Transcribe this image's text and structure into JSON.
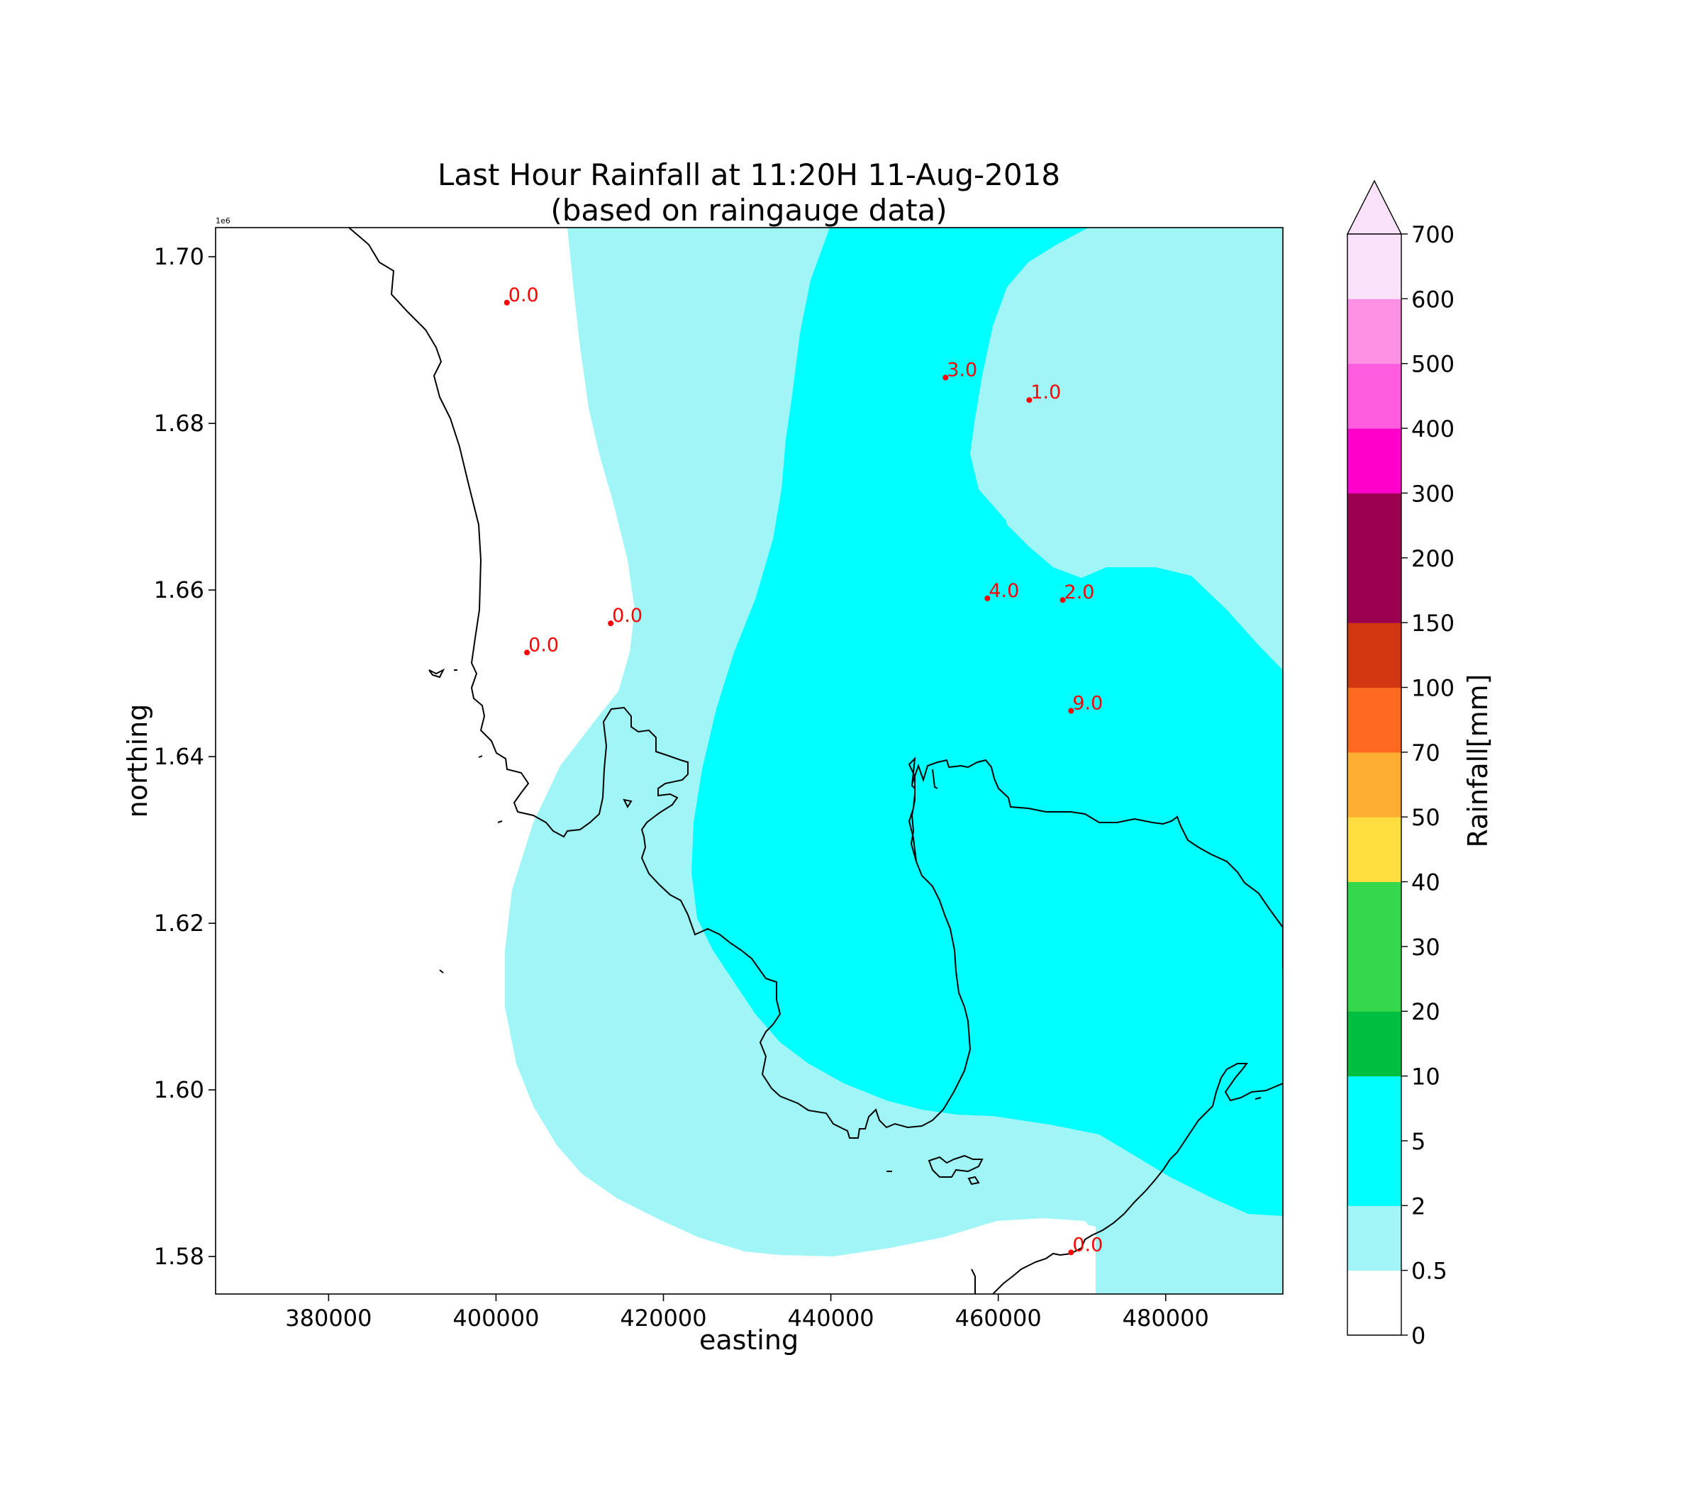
{
  "chart_data": {
    "type": "map",
    "title_line1": "Last Hour Rainfall at 11:20H 11-Aug-2018",
    "title_line2": "(based on raingauge data)",
    "xlabel": "easting",
    "ylabel": "northing",
    "y_offset_label": "1e6",
    "xlim": [
      366500,
      494000
    ],
    "ylim": [
      1.5755,
      1.7035
    ],
    "x_ticks": [
      380000,
      400000,
      420000,
      440000,
      460000,
      480000
    ],
    "x_tick_labels": [
      "380000",
      "400000",
      "420000",
      "440000",
      "460000",
      "480000"
    ],
    "y_ticks": [
      1.58,
      1.6,
      1.62,
      1.64,
      1.66,
      1.68,
      1.7
    ],
    "y_tick_labels": [
      "1.58",
      "1.60",
      "1.62",
      "1.64",
      "1.66",
      "1.68",
      "1.70"
    ],
    "gauges": [
      {
        "easting": 401300,
        "northing": 1.6945,
        "label": "0.0"
      },
      {
        "easting": 453700,
        "northing": 1.6855,
        "label": "3.0"
      },
      {
        "easting": 463700,
        "northing": 1.6828,
        "label": "1.0"
      },
      {
        "easting": 413700,
        "northing": 1.656,
        "label": "0.0"
      },
      {
        "easting": 403700,
        "northing": 1.6525,
        "label": "0.0"
      },
      {
        "easting": 458700,
        "northing": 1.659,
        "label": "4.0"
      },
      {
        "easting": 467700,
        "northing": 1.6588,
        "label": "2.0"
      },
      {
        "easting": 468700,
        "northing": 1.6455,
        "label": "9.0"
      },
      {
        "easting": 468700,
        "northing": 1.5805,
        "label": "0.0"
      }
    ],
    "colorbar": {
      "label": "Rainfall[mm]",
      "extend": "max",
      "extend_color": "#fbe2fb",
      "boundary_labels": [
        "0",
        "0.5",
        "2",
        "5",
        "10",
        "20",
        "30",
        "40",
        "50",
        "70",
        "100",
        "150",
        "200",
        "300",
        "400",
        "500",
        "600",
        "700"
      ],
      "colors": [
        "#ffffff",
        "#a0f6f6",
        "#00ffff",
        "#00ffff",
        "#00bf40",
        "#35d84a",
        "#35d84a",
        "#fede3e",
        "#feae32",
        "#ff6820",
        "#d23610",
        "#9b0050",
        "#9b0050",
        "#ff00cb",
        "#fe5cdf",
        "#fe90e4",
        "#fbe2fb"
      ]
    },
    "label_color": "#ff0000",
    "zone_colors": {
      "light": "#a0f6f6",
      "cyan": "#00ffff",
      "white": "#ffffff"
    }
  }
}
